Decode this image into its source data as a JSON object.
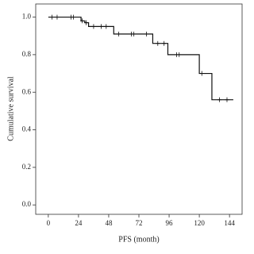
{
  "chart_data": {
    "type": "step",
    "x_label": "PFS (month)",
    "y_label": "Cumulative survival",
    "x": [
      0,
      26,
      29,
      32,
      52,
      83,
      95,
      120,
      130,
      147
    ],
    "values": [
      1.0,
      0.98,
      0.97,
      0.95,
      0.91,
      0.86,
      0.8,
      0.7,
      0.56,
      0.56
    ],
    "color": "#111111",
    "censored": {
      "x": [
        3,
        7,
        18,
        20,
        27,
        30,
        36,
        42,
        46,
        56,
        66,
        68,
        78,
        87,
        92,
        102,
        104,
        122,
        136,
        142
      ],
      "values": [
        1.0,
        1.0,
        1.0,
        1.0,
        0.98,
        0.97,
        0.95,
        0.95,
        0.95,
        0.91,
        0.91,
        0.91,
        0.91,
        0.86,
        0.86,
        0.8,
        0.8,
        0.7,
        0.56,
        0.56
      ]
    },
    "xlim": [
      -10,
      154
    ],
    "ylim": [
      -0.05,
      1.07
    ],
    "xticks": [
      0,
      24,
      48,
      72,
      96,
      120,
      144
    ],
    "yticks": [
      {
        "value": 0,
        "label": "0.0"
      },
      {
        "value": 0.2,
        "label": "0.2"
      },
      {
        "value": 0.4,
        "label": "0.4"
      },
      {
        "value": 0.6,
        "label": "0.6"
      },
      {
        "value": 0.8,
        "label": "0.8"
      },
      {
        "value": 1,
        "label": "1.0"
      }
    ]
  }
}
